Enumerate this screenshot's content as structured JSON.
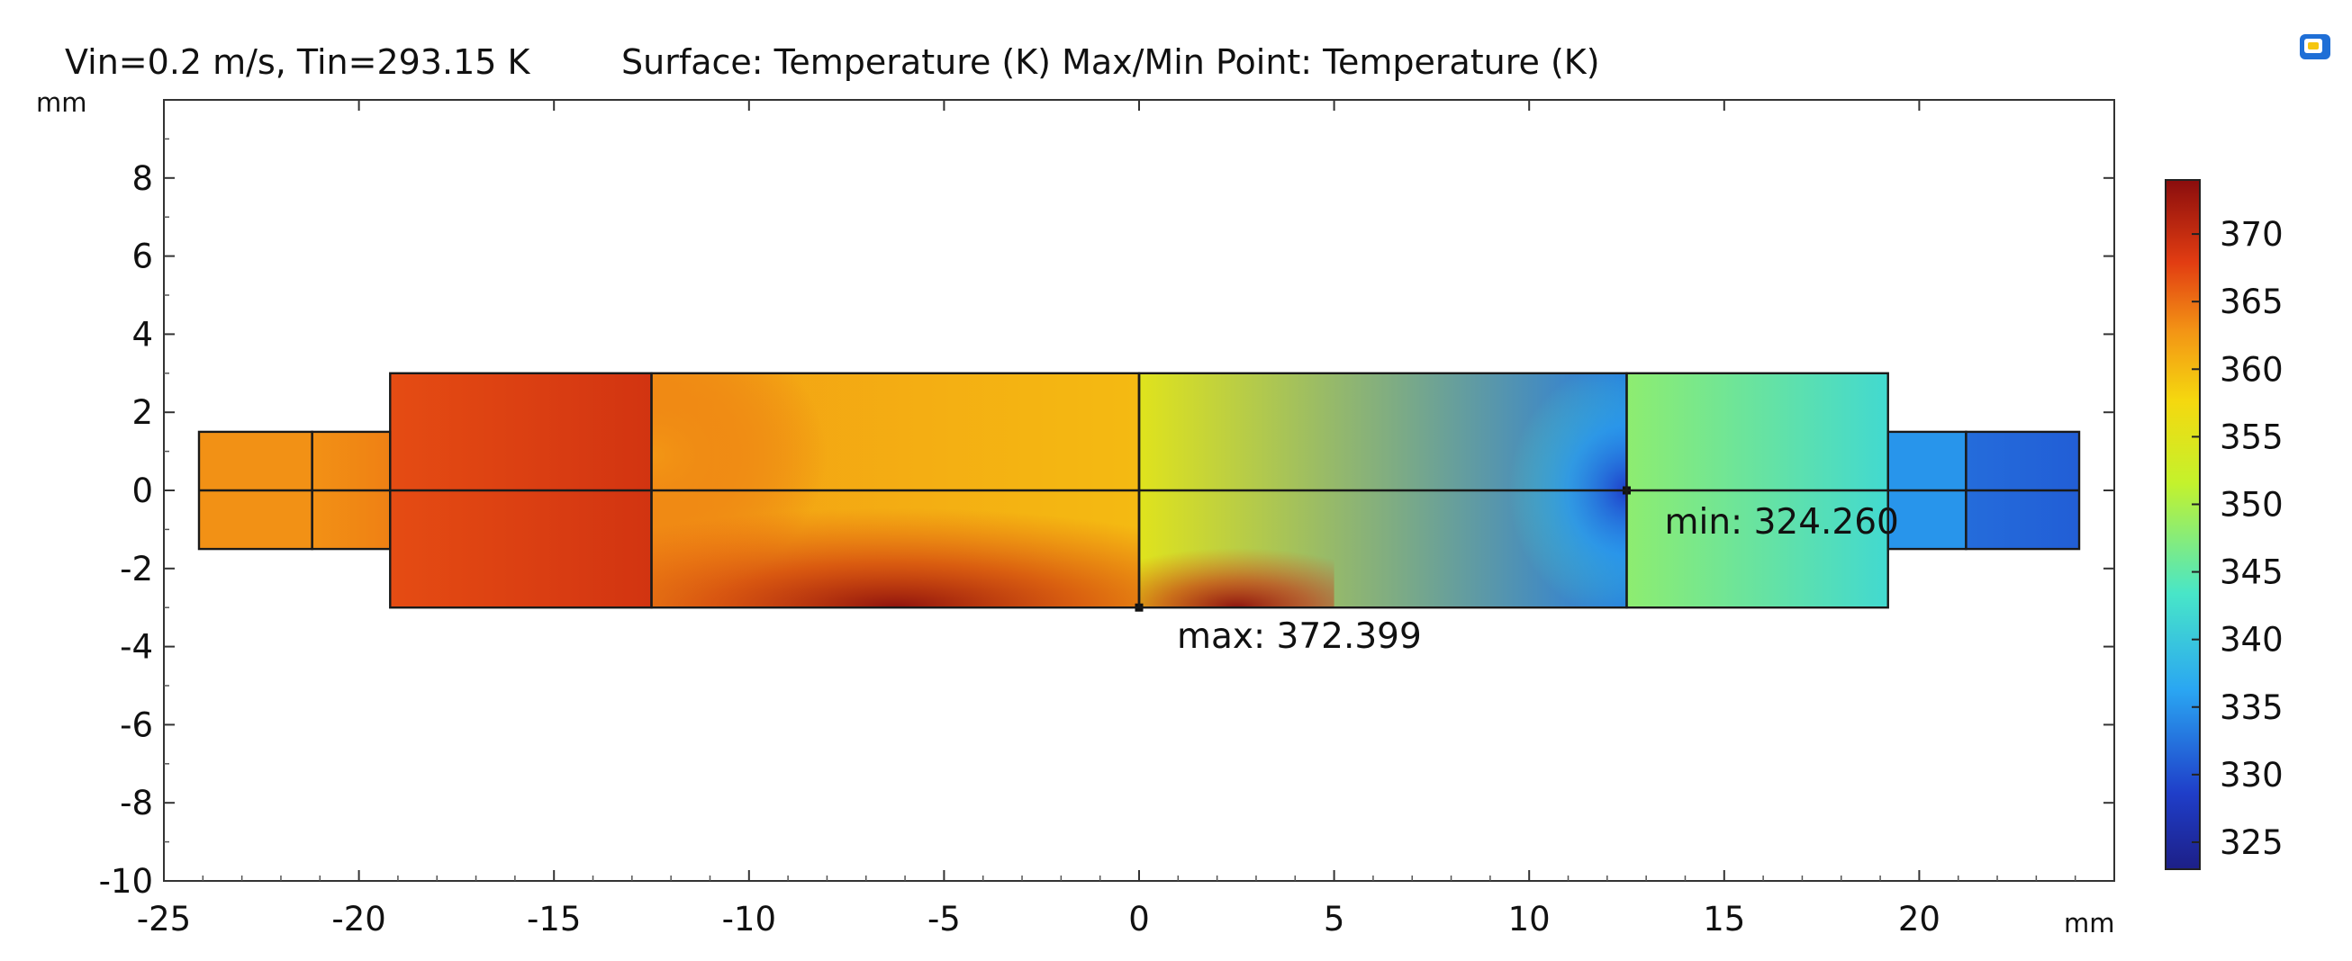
{
  "chart_data": {
    "type": "heatmap",
    "title": "Vin=0.2 m/s, Tin=293.15 K",
    "subtitle": "Surface: Temperature (K)  Max/Min Point: Temperature (K)",
    "xlabel": "mm",
    "ylabel": "mm",
    "xlim": [
      -25,
      25
    ],
    "ylim": [
      -10,
      10
    ],
    "x_ticks": [
      "-25",
      "-20",
      "-15",
      "-10",
      "-5",
      "0",
      "5",
      "10",
      "15",
      "20"
    ],
    "y_ticks": [
      "-10",
      "-8",
      "-6",
      "-4",
      "-2",
      "0",
      "2",
      "4",
      "6",
      "8"
    ],
    "grid": false,
    "colorbar": {
      "range": [
        323,
        374
      ],
      "ticks": [
        "325",
        "330",
        "335",
        "340",
        "345",
        "350",
        "355",
        "360",
        "365",
        "370"
      ],
      "colormap": "jet",
      "placement": "right"
    },
    "geometry": {
      "regions": [
        {
          "x": [
            -24.1,
            -21.2
          ],
          "y": [
            -1.5,
            1.5
          ],
          "t_left": 363,
          "t_right": 363
        },
        {
          "x": [
            -21.2,
            -19.2
          ],
          "y": [
            -1.5,
            1.5
          ],
          "t_left": 363,
          "t_right": 364
        },
        {
          "x": [
            -19.2,
            -12.5
          ],
          "y": [
            -3,
            3
          ],
          "t_left": 367,
          "t_right": 369
        },
        {
          "x": [
            -12.5,
            0
          ],
          "y": [
            -3,
            3
          ],
          "t_left": 362,
          "t_right": 360
        },
        {
          "x": [
            0,
            12.5
          ],
          "y": [
            -3,
            3
          ],
          "t_left": 355,
          "t_right": 333
        },
        {
          "x": [
            12.5,
            19.2
          ],
          "y": [
            -3,
            3
          ],
          "t_left": 348,
          "t_right": 342
        },
        {
          "x": [
            19.2,
            21.2
          ],
          "y": [
            -1.5,
            1.5
          ],
          "t_left": 335,
          "t_right": 335
        },
        {
          "x": [
            21.2,
            24.1
          ],
          "y": [
            -1.5,
            1.5
          ],
          "t_left": 332,
          "t_right": 331
        }
      ],
      "centerline_y": 0
    },
    "annotations": {
      "max": {
        "label": "max: 372.399",
        "x": 0,
        "y": -3,
        "value": 372.399
      },
      "min": {
        "label": "min: 324.260",
        "x": 12.5,
        "y": 0,
        "value": 324.26
      }
    },
    "series": [
      {
        "name": "Temperature (K)",
        "min": 324.26,
        "max": 372.399
      }
    ]
  },
  "toolbar": {
    "icon": "comsol-logo-icon"
  }
}
